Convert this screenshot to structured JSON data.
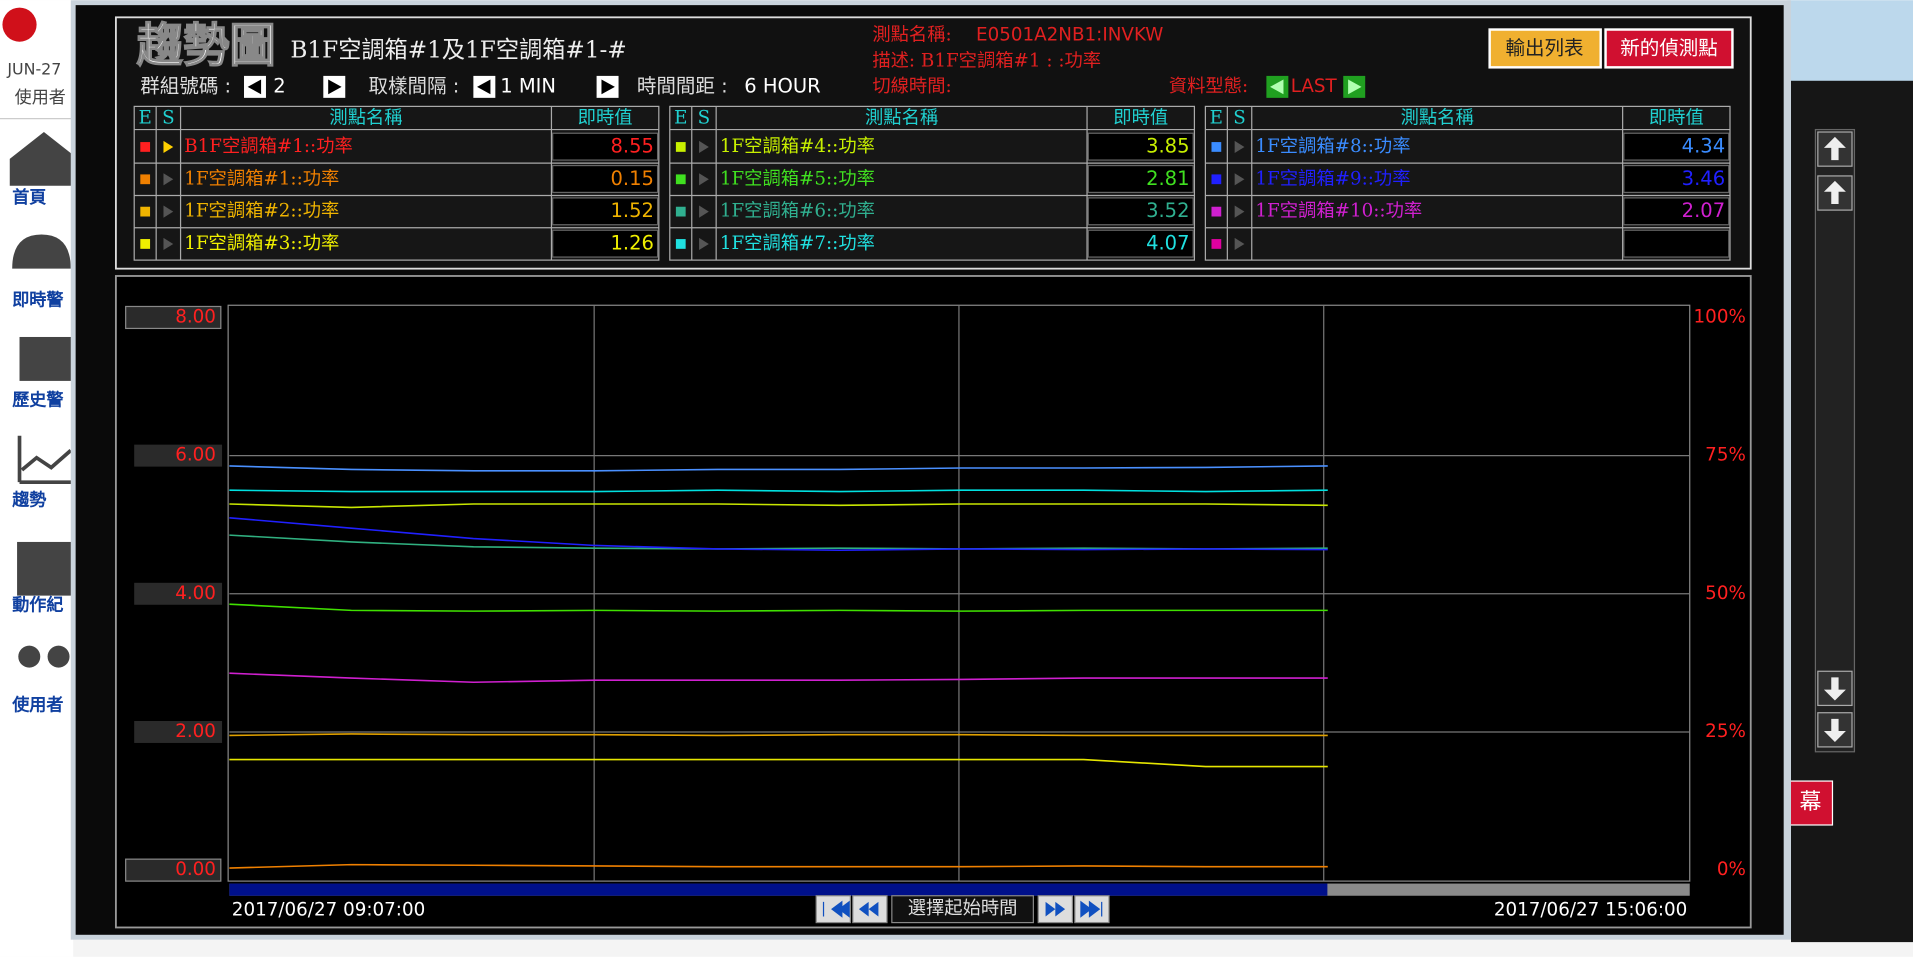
{
  "sidebar": {
    "date": "JUN-27",
    "user": "使用者",
    "items": [
      "首頁",
      "即時警",
      "歷史警",
      "趨勢",
      "動作紀",
      "使用者"
    ]
  },
  "side_panel": {
    "button": "幕"
  },
  "header": {
    "logo": "趨勢圖",
    "title": "B1F空調箱#1及1F空調箱#1-#",
    "group_label": "群組號碼 :",
    "group": 2,
    "interval_label": "取樣間隔 :",
    "interval": "1 MIN",
    "span_label": "時間間距 :",
    "span": "6 HOUR",
    "point_label": "測點名稱:",
    "point": "E0501A2NB1:INVKW",
    "desc": "描述: B1F空調箱#1 : :功率",
    "cursor_label": "切線時間:",
    "type_label": "資料型態:",
    "type": "LAST",
    "buttons": [
      "輸出列表",
      "新的偵測點"
    ]
  },
  "table": {
    "columns": [
      "E",
      "S",
      "測點名稱",
      "即時值"
    ],
    "groups": [
      [
        {
          "name": "B1F空調箱#1::功率",
          "value": 8.55,
          "color": "#ff2020"
        },
        {
          "name": "1F空調箱#1::功率",
          "value": 0.15,
          "color": "#f08000"
        },
        {
          "name": "1F空調箱#2::功率",
          "value": 1.52,
          "color": "#f0b400"
        },
        {
          "name": "1F空調箱#3::功率",
          "value": 1.26,
          "color": "#f0f000"
        }
      ],
      [
        {
          "name": "1F空調箱#4::功率",
          "value": 3.85,
          "color": "#c8f000"
        },
        {
          "name": "1F空調箱#5::功率",
          "value": 2.81,
          "color": "#40e020"
        },
        {
          "name": "1F空調箱#6::功率",
          "value": 3.52,
          "color": "#30b090"
        },
        {
          "name": "1F空調箱#7::功率",
          "value": 4.07,
          "color": "#20e0e0"
        }
      ],
      [
        {
          "name": "1F空調箱#8::功率",
          "value": 4.34,
          "color": "#3a8cff"
        },
        {
          "name": "1F空調箱#9::功率",
          "value": 3.46,
          "color": "#2020ff"
        },
        {
          "name": "1F空調箱#10::功率",
          "value": 2.07,
          "color": "#d020d0"
        }
      ]
    ]
  },
  "chart_data": {
    "type": "line",
    "x": [
      "2017/06/27 09:07:00",
      "2017/06/27 09:37:00",
      "2017/06/27 10:07:00",
      "2017/06/27 10:37:00",
      "2017/06/27 11:07:00",
      "2017/06/27 11:37:00",
      "2017/06/27 12:07:00",
      "2017/06/27 12:37:00",
      "2017/06/27 13:07:00",
      "2017/06/27 13:37:00"
    ],
    "xlim": [
      "2017/06/27 09:07:00",
      "2017/06/27 15:06:00"
    ],
    "xticks": [
      "2017/06/27 09:07:00",
      "2017/06/27 15:06:00"
    ],
    "ylim": [
      0,
      8
    ],
    "yticks": [
      {
        "value": 0,
        "label": "0.00"
      },
      {
        "value": 2,
        "label": "2.00"
      },
      {
        "value": 4,
        "label": "4.00"
      },
      {
        "value": 6,
        "label": "6.00"
      },
      {
        "value": 8,
        "label": "8.00"
      }
    ],
    "y2lim": [
      0,
      100
    ],
    "y2ticks": [
      {
        "value": 0,
        "label": "0%"
      },
      {
        "value": 25,
        "label": "25%"
      },
      {
        "value": 50,
        "label": "50%"
      },
      {
        "value": 75,
        "label": "75%"
      },
      {
        "value": 100,
        "label": "100%"
      }
    ],
    "grid": true,
    "series": [
      {
        "color": "#f08000",
        "values": [
          0.03,
          0.08,
          0.07,
          0.06,
          0.05,
          0.05,
          0.05,
          0.06,
          0.05,
          0.05
        ]
      },
      {
        "color": "#e0a000",
        "values": [
          1.95,
          1.97,
          1.96,
          1.96,
          1.95,
          1.96,
          1.96,
          1.95,
          1.95,
          1.95
        ]
      },
      {
        "color": "#e6e600",
        "values": [
          1.6,
          1.6,
          1.6,
          1.6,
          1.6,
          1.6,
          1.6,
          1.6,
          1.5,
          1.5
        ]
      },
      {
        "color": "#c8e600",
        "values": [
          5.3,
          5.25,
          5.3,
          5.3,
          5.3,
          5.28,
          5.3,
          5.3,
          5.3,
          5.28
        ]
      },
      {
        "color": "#40e000",
        "values": [
          3.85,
          3.76,
          3.75,
          3.76,
          3.75,
          3.76,
          3.75,
          3.76,
          3.76,
          3.76
        ]
      },
      {
        "color": "#30b080",
        "values": [
          4.85,
          4.75,
          4.68,
          4.66,
          4.65,
          4.66,
          4.65,
          4.66,
          4.65,
          4.66
        ]
      },
      {
        "color": "#00e0e0",
        "values": [
          5.5,
          5.48,
          5.48,
          5.48,
          5.5,
          5.48,
          5.5,
          5.5,
          5.48,
          5.5
        ]
      },
      {
        "color": "#4a90ff",
        "values": [
          5.85,
          5.8,
          5.78,
          5.78,
          5.8,
          5.8,
          5.82,
          5.82,
          5.83,
          5.85
        ]
      },
      {
        "color": "#2020ff",
        "values": [
          5.1,
          4.95,
          4.8,
          4.7,
          4.65,
          4.63,
          4.65,
          4.64,
          4.65,
          4.64
        ]
      },
      {
        "color": "#d020d0",
        "values": [
          2.85,
          2.78,
          2.72,
          2.75,
          2.75,
          2.75,
          2.76,
          2.78,
          2.78,
          2.78
        ]
      }
    ]
  },
  "footer": {
    "button": "選擇起始時間"
  }
}
